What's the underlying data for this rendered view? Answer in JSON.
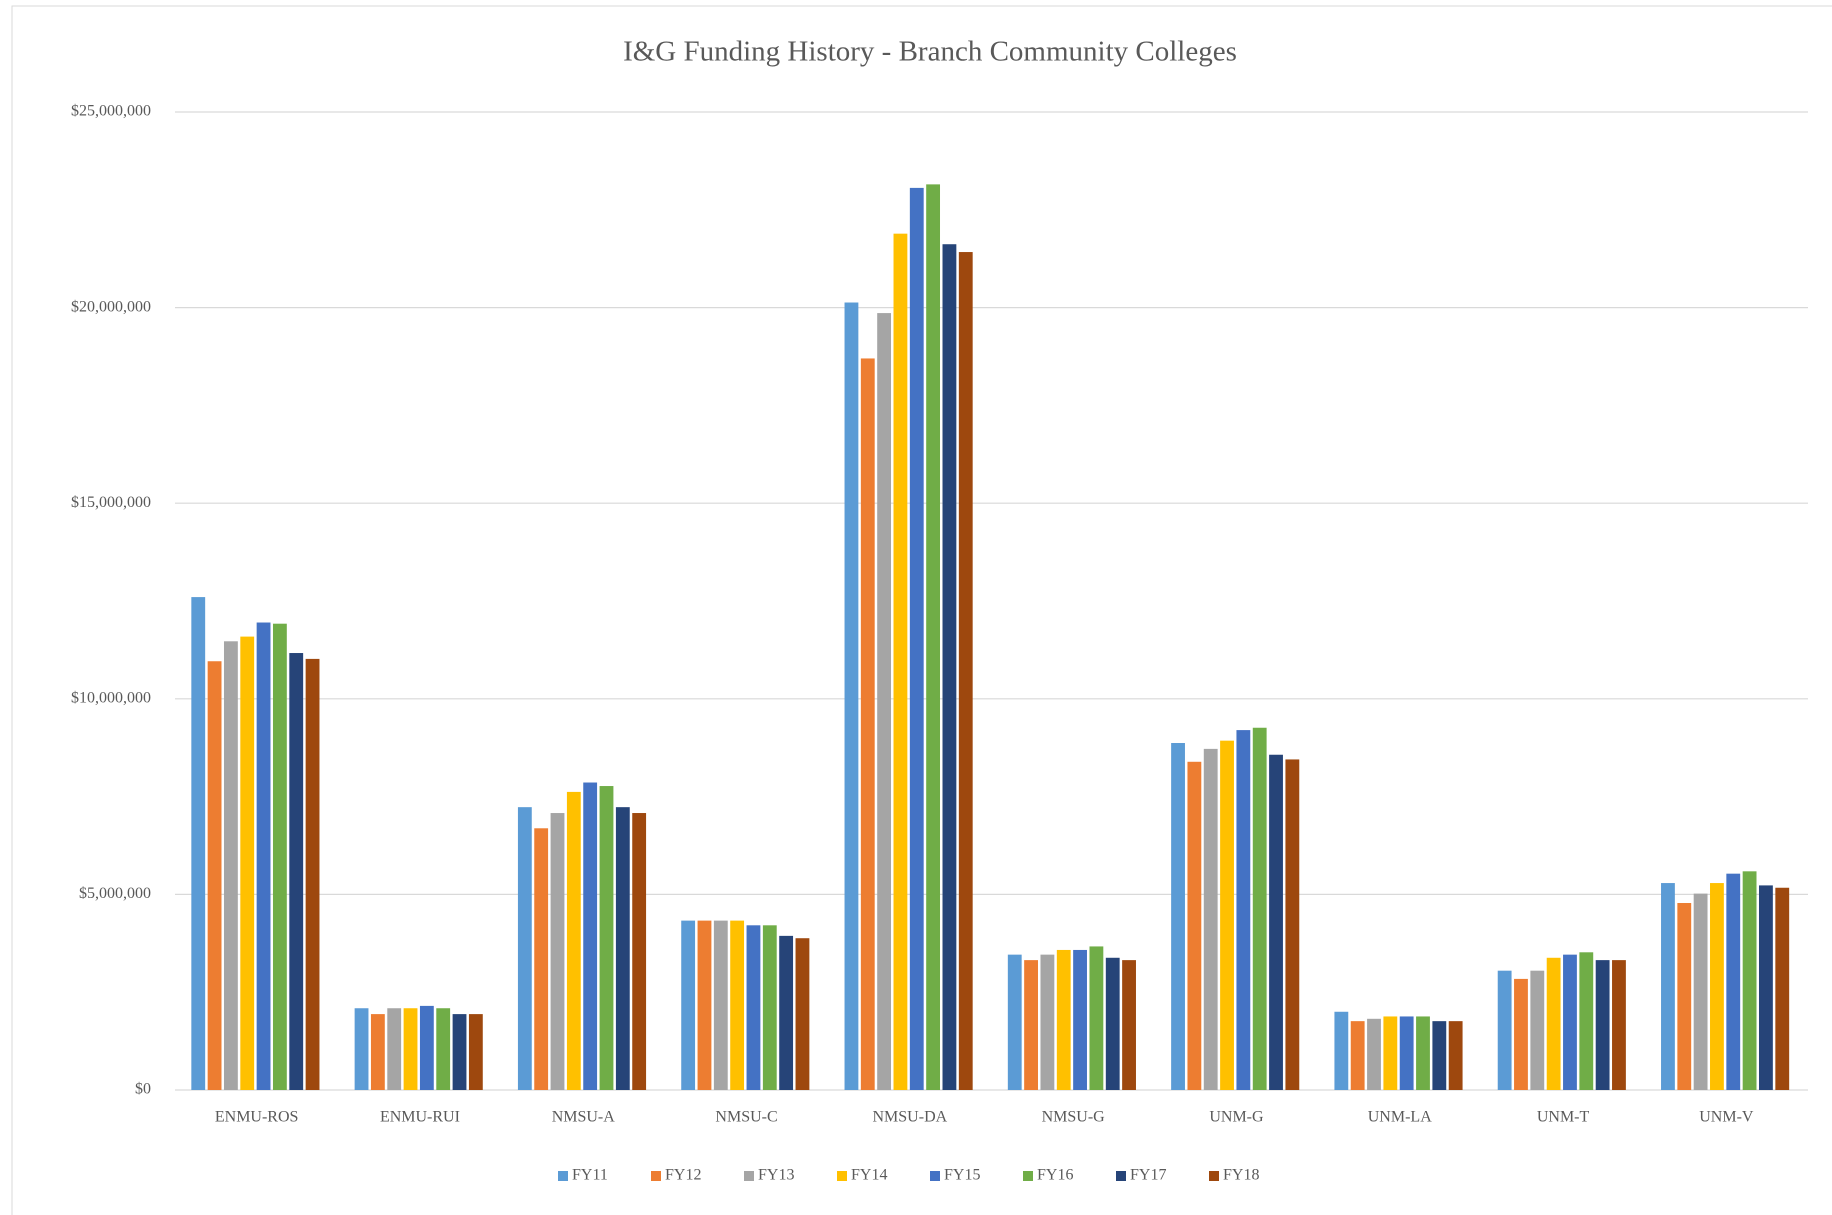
{
  "chart_data": {
    "type": "bar",
    "title": "I&G Funding History - Branch Community Colleges",
    "categories": [
      "ENMU-ROS",
      "ENMU-RUI",
      "NMSU-A",
      "NMSU-C",
      "NMSU-DA",
      "NMSU-G",
      "UNM-G",
      "UNM-LA",
      "UNM-T",
      "UNM-V"
    ],
    "series": [
      {
        "name": "FY11",
        "color": "#5b9bd5",
        "values": [
          12600000,
          2090000,
          7230000,
          4330000,
          20130000,
          3460000,
          8870000,
          2000000,
          3050000,
          5290000
        ]
      },
      {
        "name": "FY12",
        "color": "#ed7d31",
        "values": [
          10960000,
          1940000,
          6690000,
          4330000,
          18700000,
          3320000,
          8390000,
          1760000,
          2840000,
          4780000
        ]
      },
      {
        "name": "FY13",
        "color": "#a5a5a5",
        "values": [
          11470000,
          2090000,
          7080000,
          4330000,
          19860000,
          3460000,
          8720000,
          1820000,
          3050000,
          5020000
        ]
      },
      {
        "name": "FY14",
        "color": "#ffc000",
        "values": [
          11590000,
          2090000,
          7620000,
          4330000,
          21890000,
          3580000,
          8930000,
          1880000,
          3380000,
          5290000
        ]
      },
      {
        "name": "FY15",
        "color": "#4472c4",
        "values": [
          11950000,
          2150000,
          7860000,
          4210000,
          23060000,
          3580000,
          9200000,
          1880000,
          3460000,
          5530000
        ]
      },
      {
        "name": "FY16",
        "color": "#70ad47",
        "values": [
          11920000,
          2090000,
          7770000,
          4210000,
          23150000,
          3670000,
          9260000,
          1880000,
          3520000,
          5590000
        ]
      },
      {
        "name": "FY17",
        "color": "#264478",
        "values": [
          11170000,
          1940000,
          7230000,
          3940000,
          21620000,
          3380000,
          8570000,
          1760000,
          3320000,
          5230000
        ]
      },
      {
        "name": "FY18",
        "color": "#9e480e",
        "values": [
          11020000,
          1940000,
          7080000,
          3880000,
          21420000,
          3320000,
          8450000,
          1760000,
          3320000,
          5170000
        ]
      }
    ],
    "ylim": [
      0,
      25000000
    ],
    "yticks": [
      {
        "value": 0,
        "label": "$0"
      },
      {
        "value": 5000000,
        "label": "$5,000,000"
      },
      {
        "value": 10000000,
        "label": "$10,000,000"
      },
      {
        "value": 15000000,
        "label": "$15,000,000"
      },
      {
        "value": 20000000,
        "label": "$20,000,000"
      },
      {
        "value": 25000000,
        "label": "$25,000,000"
      }
    ],
    "grid": true,
    "legend": "bottom"
  }
}
